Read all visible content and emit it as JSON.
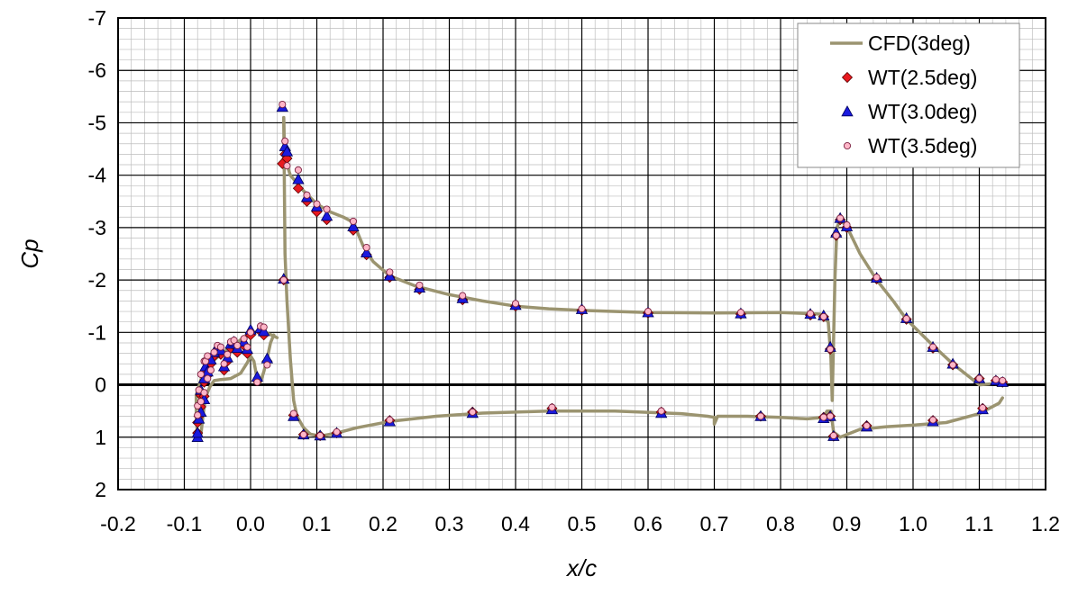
{
  "chart_data": {
    "type": "scatter",
    "title": "",
    "xlabel": "x/c",
    "ylabel": "Cp",
    "xlim": [
      -0.2,
      1.2
    ],
    "ylim": [
      -7,
      2
    ],
    "y_inverted": true,
    "grid": "major and minor",
    "legend_position": "top-right",
    "x_tick_labels": [
      "-0.2",
      "-0.1",
      "0.0",
      "0.1",
      "0.2",
      "0.3",
      "0.4",
      "0.5",
      "0.6",
      "0.7",
      "0.8",
      "0.9",
      "1.0",
      "1.1",
      "1.2"
    ],
    "y_tick_labels": [
      "-7",
      "-6",
      "-5",
      "-4",
      "-3",
      "-2",
      "-1",
      "0",
      "1",
      "2"
    ],
    "series": [
      {
        "name": "CFD(3deg)",
        "kind": "line",
        "color": "#9b9470",
        "segments": [
          [
            [
              -0.08,
              1.0
            ],
            [
              -0.082,
              0.6
            ],
            [
              -0.082,
              0.2
            ],
            [
              -0.075,
              -0.1
            ],
            [
              -0.07,
              -0.25
            ],
            [
              -0.06,
              -0.42
            ],
            [
              -0.045,
              -0.58
            ],
            [
              -0.03,
              -0.72
            ],
            [
              -0.015,
              -0.86
            ],
            [
              0.0,
              -0.97
            ],
            [
              0.01,
              -1.02
            ],
            [
              0.02,
              -1.0
            ],
            [
              0.03,
              -0.96
            ],
            [
              0.04,
              -0.9
            ]
          ],
          [
            [
              -0.075,
              0.95
            ],
            [
              -0.072,
              0.6
            ],
            [
              -0.068,
              0.25
            ],
            [
              -0.062,
              0.05
            ],
            [
              -0.055,
              -0.08
            ],
            [
              -0.045,
              -0.1
            ],
            [
              -0.03,
              -0.12
            ],
            [
              -0.015,
              -0.22
            ],
            [
              -0.005,
              -0.42
            ],
            [
              0.0,
              -0.55
            ],
            [
              0.005,
              -0.45
            ],
            [
              0.01,
              -0.1
            ],
            [
              0.015,
              -0.05
            ],
            [
              0.02,
              -0.25
            ],
            [
              0.025,
              -0.5
            ],
            [
              0.03,
              -0.8
            ],
            [
              0.035,
              -0.95
            ]
          ],
          [
            [
              0.05,
              -5.1
            ],
            [
              0.051,
              -4.5
            ],
            [
              0.055,
              -4.2
            ],
            [
              0.06,
              -4.0
            ],
            [
              0.07,
              -3.85
            ],
            [
              0.08,
              -3.7
            ],
            [
              0.1,
              -3.45
            ],
            [
              0.12,
              -3.3
            ],
            [
              0.14,
              -3.2
            ],
            [
              0.155,
              -3.1
            ],
            [
              0.17,
              -2.65
            ],
            [
              0.185,
              -2.35
            ],
            [
              0.21,
              -2.08
            ],
            [
              0.25,
              -1.88
            ],
            [
              0.3,
              -1.72
            ],
            [
              0.35,
              -1.6
            ],
            [
              0.4,
              -1.5
            ],
            [
              0.45,
              -1.45
            ],
            [
              0.5,
              -1.42
            ],
            [
              0.6,
              -1.38
            ],
            [
              0.7,
              -1.37
            ],
            [
              0.8,
              -1.38
            ],
            [
              0.86,
              -1.35
            ],
            [
              0.872,
              -1.2
            ],
            [
              0.876,
              -0.5
            ],
            [
              0.878,
              0.3
            ],
            [
              0.882,
              -2.0
            ],
            [
              0.885,
              -3.0
            ],
            [
              0.89,
              -3.15
            ],
            [
              0.9,
              -3.02
            ],
            [
              0.92,
              -2.5
            ],
            [
              0.945,
              -2.0
            ],
            [
              0.97,
              -1.6
            ],
            [
              0.99,
              -1.25
            ],
            [
              1.03,
              -0.75
            ],
            [
              1.06,
              -0.4
            ],
            [
              1.09,
              -0.1
            ],
            [
              1.1,
              0.0
            ],
            [
              1.12,
              -0.02
            ],
            [
              1.13,
              -0.06
            ]
          ],
          [
            [
              0.05,
              -5.1
            ],
            [
              0.052,
              -2.5
            ],
            [
              0.055,
              -1.6
            ],
            [
              0.06,
              -0.5
            ],
            [
              0.065,
              0.3
            ],
            [
              0.07,
              0.6
            ],
            [
              0.08,
              0.82
            ],
            [
              0.09,
              0.94
            ],
            [
              0.105,
              0.98
            ],
            [
              0.13,
              0.92
            ],
            [
              0.16,
              0.82
            ],
            [
              0.21,
              0.7
            ],
            [
              0.28,
              0.6
            ],
            [
              0.35,
              0.54
            ],
            [
              0.45,
              0.5
            ],
            [
              0.55,
              0.5
            ],
            [
              0.65,
              0.55
            ],
            [
              0.69,
              0.6
            ],
            [
              0.7,
              0.62
            ],
            [
              0.7,
              0.75
            ],
            [
              0.705,
              0.6
            ],
            [
              0.75,
              0.6
            ],
            [
              0.8,
              0.62
            ],
            [
              0.84,
              0.65
            ],
            [
              0.865,
              0.62
            ],
            [
              0.87,
              0.5
            ],
            [
              0.876,
              0.5
            ],
            [
              0.88,
              0.9
            ],
            [
              0.89,
              1.0
            ],
            [
              0.92,
              0.85
            ],
            [
              0.96,
              0.8
            ],
            [
              1.0,
              0.77
            ],
            [
              1.05,
              0.72
            ],
            [
              1.1,
              0.55
            ],
            [
              1.13,
              0.35
            ],
            [
              1.135,
              0.25
            ]
          ]
        ]
      },
      {
        "name": "WT(2.5deg)",
        "kind": "marker",
        "marker": "diamond",
        "color": "#e8191f",
        "x": [
          -0.08,
          -0.078,
          -0.075,
          -0.07,
          -0.068,
          -0.065,
          -0.06,
          -0.055,
          -0.05,
          -0.045,
          -0.04,
          -0.035,
          -0.03,
          -0.025,
          -0.02,
          -0.01,
          -0.005,
          0.0,
          0.01,
          0.015,
          0.02,
          0.025,
          0.048,
          0.05,
          0.052,
          0.055,
          0.072,
          0.085,
          0.1,
          0.115,
          0.155,
          0.175,
          0.21,
          0.255,
          0.32,
          0.4,
          0.5,
          0.6,
          0.74,
          0.845,
          0.865,
          0.875,
          0.875,
          0.884,
          0.89,
          0.9,
          0.945,
          0.99,
          1.03,
          1.06,
          1.1,
          1.125,
          1.135,
          -0.08,
          -0.075,
          -0.07,
          -0.065,
          0.065,
          0.08,
          0.105,
          0.13,
          0.21,
          0.335,
          0.455,
          0.62,
          0.77,
          0.865,
          0.875,
          0.88,
          0.93,
          1.03,
          1.105
        ],
        "y": [
          0.92,
          0.6,
          0.2,
          -0.05,
          -0.28,
          -0.42,
          -0.4,
          -0.55,
          -0.62,
          -0.58,
          -0.28,
          -0.45,
          -0.7,
          -0.75,
          -0.62,
          -0.75,
          -0.6,
          -0.95,
          -0.08,
          -1.02,
          -0.95,
          -0.45,
          -4.22,
          -2.0,
          -4.4,
          -4.32,
          -3.75,
          -3.5,
          -3.3,
          -3.15,
          -2.95,
          -2.48,
          -2.05,
          -1.82,
          -1.62,
          -1.5,
          -1.42,
          -1.37,
          -1.35,
          -1.33,
          -1.3,
          -0.68,
          -0.68,
          -2.85,
          -3.15,
          -3.0,
          -2.02,
          -1.25,
          -0.7,
          -0.38,
          -0.12,
          -0.08,
          -0.05,
          0.72,
          0.42,
          0.22,
          -0.18,
          0.58,
          0.95,
          0.97,
          0.92,
          0.68,
          0.52,
          0.45,
          0.52,
          0.6,
          0.62,
          0.6,
          0.98,
          0.78,
          0.68,
          0.45
        ]
      },
      {
        "name": "WT(3.0deg)",
        "kind": "marker",
        "marker": "triangle",
        "color": "#1a1adf",
        "x": [
          -0.08,
          -0.078,
          -0.075,
          -0.07,
          -0.068,
          -0.065,
          -0.06,
          -0.055,
          -0.05,
          -0.045,
          -0.04,
          -0.035,
          -0.03,
          -0.025,
          -0.02,
          -0.01,
          -0.005,
          0.0,
          0.01,
          0.015,
          0.02,
          0.025,
          0.048,
          0.05,
          0.052,
          0.055,
          0.072,
          0.085,
          0.1,
          0.115,
          0.155,
          0.175,
          0.21,
          0.255,
          0.32,
          0.4,
          0.5,
          0.6,
          0.74,
          0.845,
          0.865,
          0.875,
          0.884,
          0.89,
          0.9,
          0.945,
          0.99,
          1.03,
          1.06,
          1.1,
          1.125,
          1.135,
          -0.08,
          -0.075,
          -0.07,
          -0.065,
          0.065,
          0.08,
          0.105,
          0.13,
          0.21,
          0.335,
          0.455,
          0.62,
          0.77,
          0.865,
          0.875,
          0.88,
          0.93,
          1.03,
          1.105
        ],
        "y": [
          1.0,
          0.65,
          0.1,
          -0.12,
          -0.35,
          -0.5,
          -0.48,
          -0.62,
          -0.7,
          -0.66,
          -0.35,
          -0.52,
          -0.78,
          -0.82,
          -0.7,
          -0.82,
          -0.68,
          -1.05,
          -0.15,
          -1.08,
          -1.02,
          -0.5,
          -5.3,
          -2.02,
          -4.55,
          -4.45,
          -3.92,
          -3.58,
          -3.4,
          -3.22,
          -3.02,
          -2.52,
          -2.08,
          -1.85,
          -1.65,
          -1.52,
          -1.44,
          -1.38,
          -1.36,
          -1.35,
          -1.32,
          -0.72,
          -2.9,
          -3.18,
          -3.02,
          -2.04,
          -1.27,
          -0.72,
          -0.4,
          -0.12,
          -0.08,
          -0.05,
          0.92,
          0.52,
          0.28,
          -0.25,
          0.6,
          0.95,
          0.97,
          0.92,
          0.7,
          0.54,
          0.47,
          0.54,
          0.6,
          0.64,
          0.6,
          0.98,
          0.8,
          0.7,
          0.47
        ]
      },
      {
        "name": "WT(3.5deg)",
        "kind": "marker",
        "marker": "circle",
        "color": "#ffb6c8",
        "x": [
          -0.08,
          -0.078,
          -0.075,
          -0.07,
          -0.068,
          -0.065,
          -0.06,
          -0.055,
          -0.05,
          -0.045,
          -0.04,
          -0.035,
          -0.03,
          -0.025,
          -0.02,
          -0.01,
          -0.005,
          0.0,
          0.01,
          0.015,
          0.02,
          0.025,
          0.048,
          0.05,
          0.052,
          0.055,
          0.072,
          0.085,
          0.1,
          0.115,
          0.155,
          0.175,
          0.21,
          0.255,
          0.32,
          0.4,
          0.5,
          0.6,
          0.74,
          0.845,
          0.865,
          0.875,
          0.884,
          0.89,
          0.9,
          0.945,
          0.99,
          1.03,
          1.06,
          1.1,
          1.125,
          1.135,
          -0.08,
          -0.075,
          -0.07,
          -0.065,
          0.065,
          0.08,
          0.105,
          0.13,
          0.21,
          0.335,
          0.455,
          0.62,
          0.77,
          0.865,
          0.875,
          0.88,
          0.93,
          1.03,
          1.105
        ],
        "y": [
          0.4,
          0.1,
          -0.2,
          -0.45,
          -0.45,
          -0.55,
          -0.28,
          -0.62,
          -0.75,
          -0.72,
          -0.4,
          -0.58,
          -0.82,
          -0.85,
          -0.75,
          -0.88,
          -0.72,
          -1.0,
          -0.05,
          -1.12,
          -1.1,
          -0.38,
          -5.35,
          -2.0,
          -4.65,
          -4.18,
          -4.1,
          -3.62,
          -3.45,
          -3.35,
          -3.12,
          -2.62,
          -2.15,
          -1.9,
          -1.7,
          -1.55,
          -1.45,
          -1.4,
          -1.38,
          -1.36,
          -1.3,
          -0.68,
          -2.85,
          -3.18,
          -3.05,
          -2.05,
          -1.26,
          -0.72,
          -0.38,
          -0.12,
          -0.1,
          -0.08,
          0.58,
          0.32,
          0.15,
          -0.12,
          0.55,
          0.95,
          0.97,
          0.9,
          0.67,
          0.52,
          0.43,
          0.5,
          0.6,
          0.62,
          0.6,
          0.97,
          0.78,
          0.67,
          0.44
        ]
      }
    ]
  }
}
